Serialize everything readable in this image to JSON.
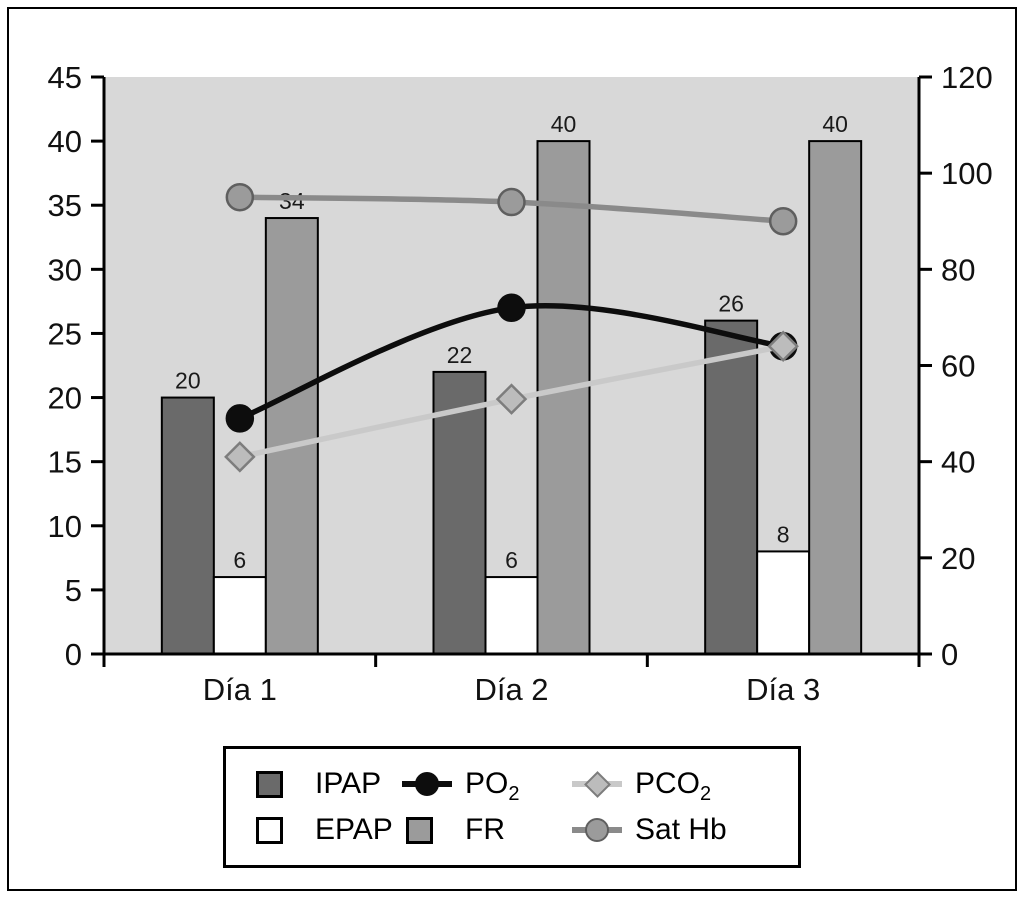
{
  "figure": {
    "background": "#ffffff",
    "frame_border_color": "#000000"
  },
  "chart_data": {
    "type": "bar",
    "subtype": "combo bar+line, dual axis",
    "categories": [
      "Día 1",
      "Día 2",
      "Día 3"
    ],
    "bar_series": [
      {
        "name": "IPAP",
        "values": [
          20,
          22,
          26
        ],
        "labels": [
          "20",
          "22",
          "26"
        ],
        "color": "#6a6a6a",
        "border": "#000000",
        "axis": "left"
      },
      {
        "name": "EPAP",
        "values": [
          6,
          6,
          8
        ],
        "labels": [
          "6",
          "6",
          "8"
        ],
        "color": "#ffffff",
        "border": "#000000",
        "axis": "left"
      },
      {
        "name": "FR",
        "values": [
          34,
          40,
          40
        ],
        "labels": [
          "34",
          "40",
          "40"
        ],
        "color": "#9b9b9b",
        "border": "#000000",
        "axis": "left"
      }
    ],
    "line_series": [
      {
        "name": "PO2",
        "display": "PO",
        "sub": "2",
        "values": [
          49,
          72,
          64
        ],
        "axis": "right",
        "line_color": "#0d0d0d",
        "marker": "circle",
        "marker_fill": "#0d0d0d",
        "marker_stroke": "#0d0d0d"
      },
      {
        "name": "PCO2",
        "display": "PCO",
        "sub": "2",
        "values": [
          41,
          53,
          64
        ],
        "axis": "right",
        "line_color": "#c9c9c9",
        "marker": "diamond",
        "marker_fill": "#bcbcbc",
        "marker_stroke": "#7d7d7d"
      },
      {
        "name": "SatHb",
        "display": "Sat Hb",
        "sub": "",
        "values": [
          95,
          94,
          90
        ],
        "axis": "right",
        "line_color": "#8a8a8a",
        "marker": "circle",
        "marker_fill": "#9b9b9b",
        "marker_stroke": "#5f5f5f"
      }
    ],
    "left_axis": {
      "min": 0,
      "max": 45,
      "ticks": [
        0,
        5,
        10,
        15,
        20,
        25,
        30,
        35,
        40,
        45
      ]
    },
    "right_axis": {
      "min": 0,
      "max": 120,
      "ticks": [
        0,
        20,
        40,
        60,
        80,
        100,
        120
      ]
    },
    "plot_bg": "#d8d8d8",
    "grid": false,
    "legend_position": "bottom",
    "title": "",
    "xlabel": "",
    "ylabel": ""
  },
  "legend": {
    "items": [
      {
        "key": "IPAP",
        "label": "IPAP",
        "sub": "",
        "type": "bar",
        "color": "#6a6a6a"
      },
      {
        "key": "PO2",
        "label": "PO",
        "sub": "2",
        "type": "line-circle",
        "line": "#0d0d0d",
        "fill": "#0d0d0d",
        "stroke": "#0d0d0d"
      },
      {
        "key": "PCO2",
        "label": "PCO",
        "sub": "2",
        "type": "line-diamond",
        "line": "#c9c9c9",
        "fill": "#bcbcbc",
        "stroke": "#7d7d7d"
      },
      {
        "key": "EPAP",
        "label": "EPAP",
        "sub": "",
        "type": "bar",
        "color": "#ffffff"
      },
      {
        "key": "FR",
        "label": "FR",
        "sub": "",
        "type": "bar",
        "color": "#9b9b9b"
      },
      {
        "key": "SatHb",
        "label": "Sat Hb",
        "sub": "",
        "type": "line-circle",
        "line": "#8a8a8a",
        "fill": "#9b9b9b",
        "stroke": "#5f5f5f"
      }
    ]
  }
}
